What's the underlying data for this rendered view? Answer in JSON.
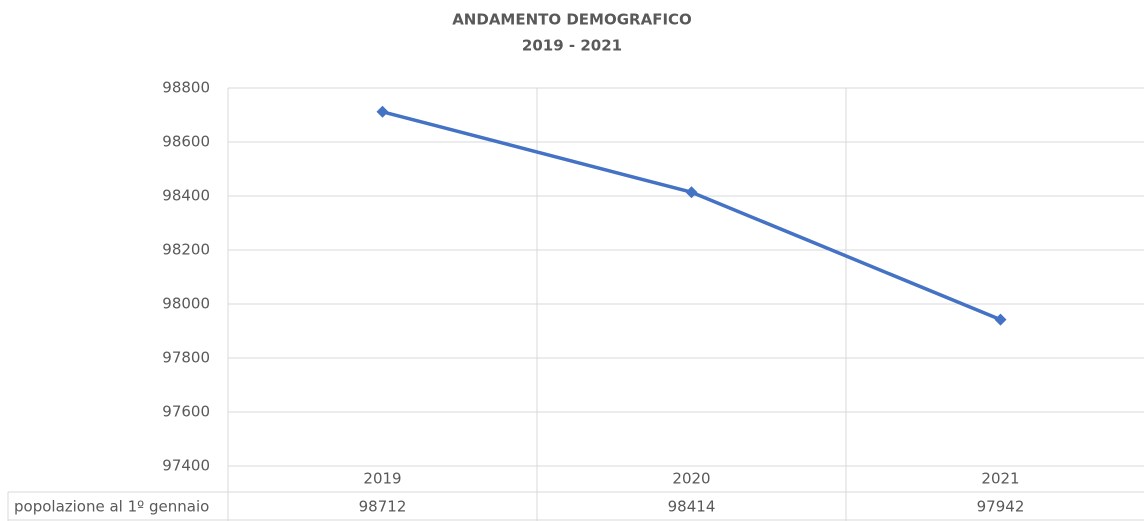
{
  "chart_data": {
    "type": "line",
    "title": "ANDAMENTO DEMOGRAFICO",
    "subtitle": "2019 - 2021",
    "categories": [
      "2019",
      "2020",
      "2021"
    ],
    "series": [
      {
        "name": "popolazione al 1º gennaio",
        "color": "#4472c4",
        "values": [
          98712,
          98414,
          97942
        ]
      }
    ],
    "ylim": [
      97400,
      98800
    ],
    "yticks": [
      97400,
      97600,
      97800,
      98000,
      98200,
      98400,
      98600,
      98800
    ],
    "grid": true,
    "data_table": true
  }
}
